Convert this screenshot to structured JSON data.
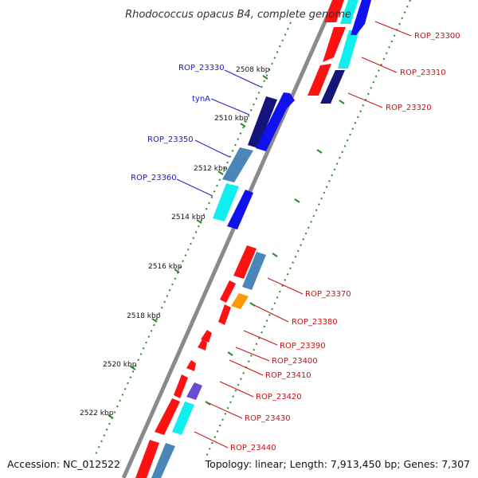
{
  "title": "Rhodococcus opacus B4, complete genome",
  "accession": "Accession: NC_012522",
  "topology": "Topology: linear; Length: 7,913,450 bp; Genes: 7,307",
  "colors": {
    "backbone": "#8a8a8a",
    "ticks": "#2a8a2a",
    "label_left": "#1a1acc",
    "label_right": "#cc1111",
    "red": "#ff1111",
    "blue": "#1111ee",
    "navy": "#14147a",
    "steel": "#4a86b8",
    "cyan": "#11eeee",
    "orange": "#ff9900",
    "purple": "#6a4ad0"
  },
  "kbp_ticks": [
    "2508 kbp",
    "2510 kbp",
    "2512 kbp",
    "2514 kbp",
    "2516 kbp",
    "2518 kbp",
    "2520 kbp",
    "2522 kbp"
  ],
  "left_labels": [
    "ROP_23330",
    "tynA",
    "ROP_23350",
    "ROP_23360"
  ],
  "right_labels": [
    "ROP_23300",
    "ROP_23310",
    "ROP_23320",
    "ROP_23370",
    "ROP_23380",
    "ROP_23390",
    "ROP_23400",
    "ROP_23410",
    "ROP_23420",
    "ROP_23430",
    "ROP_23440"
  ]
}
